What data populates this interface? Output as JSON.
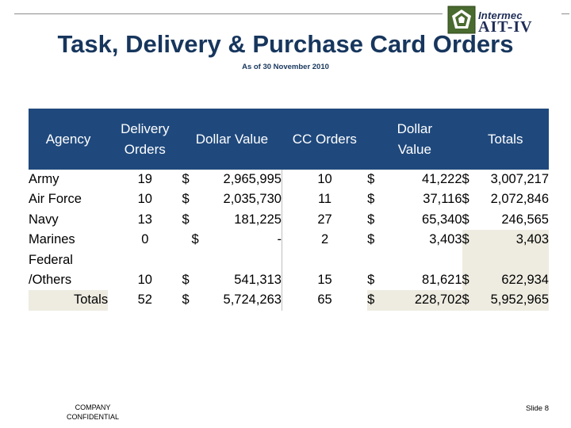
{
  "slide": {
    "title": "Task, Delivery & Purchase Card Orders",
    "subtitle": "As of 30 November 2010",
    "logo_brand": "Intermec",
    "logo_tag": "AIT-IV",
    "footer_left": "COMPANY CONFIDENTIAL",
    "footer_right": "Slide 8"
  },
  "colors": {
    "header_bg": "#1f497d",
    "title": "#17365d",
    "totals_shade": "#eeece1"
  },
  "table": {
    "headers": [
      "Agency",
      "Delivery Orders",
      "Dollar Value",
      "CC Orders",
      "Dollar Value",
      "Totals"
    ],
    "rows": [
      {
        "agency": "Army",
        "delivery_orders": "19",
        "dv_sym": "$",
        "dv_val": "2,965,995",
        "cc_orders": "10",
        "ccv_sym": "$",
        "ccv_val": "41,222",
        "tot_sym": "$",
        "tot_val": "3,007,217"
      },
      {
        "agency": "Air Force",
        "delivery_orders": "10",
        "dv_sym": "$",
        "dv_val": "2,035,730",
        "cc_orders": "11",
        "ccv_sym": "$",
        "ccv_val": "37,116",
        "tot_sym": "$",
        "tot_val": "2,072,846"
      },
      {
        "agency": "Navy",
        "delivery_orders": "13",
        "dv_sym": "$",
        "dv_val": "181,225",
        "cc_orders": "27",
        "ccv_sym": "$",
        "ccv_val": "65,340",
        "tot_sym": "$",
        "tot_val": "246,565"
      },
      {
        "agency": "Marines",
        "delivery_orders": "0",
        "dv_sym": "$",
        "dv_val": "-",
        "cc_orders": "2",
        "ccv_sym": "$",
        "ccv_val": "3,403",
        "tot_sym": "$",
        "tot_val": "3,403"
      },
      {
        "agency_line1": "Federal",
        "agency_line2": "/Others",
        "delivery_orders": "10",
        "dv_sym": "$",
        "dv_val": "541,313",
        "cc_orders": "15",
        "ccv_sym": "$",
        "ccv_val": "81,621",
        "tot_sym": "$",
        "tot_val": "622,934"
      }
    ],
    "totals": {
      "label": "Totals",
      "delivery_orders": "52",
      "dv_sym": "$",
      "dv_val": "5,724,263",
      "cc_orders": "65",
      "ccv_sym": "$",
      "ccv_val": "228,702",
      "tot_sym": "$",
      "tot_val": "5,952,965"
    }
  }
}
